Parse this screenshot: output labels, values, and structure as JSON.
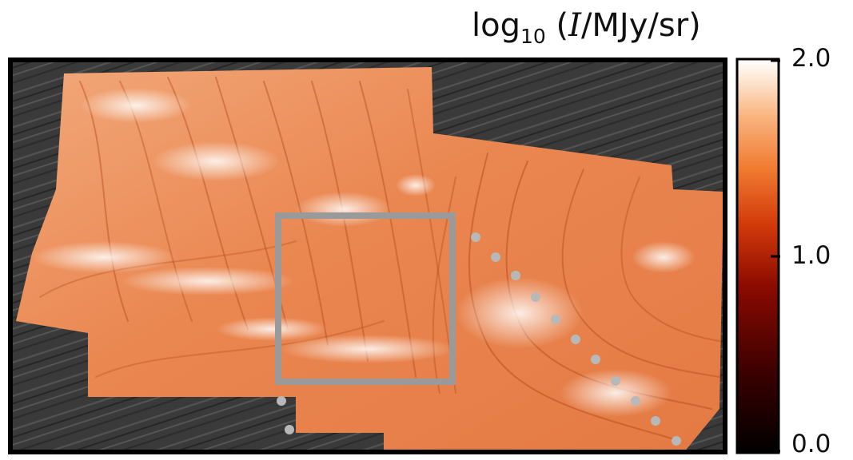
{
  "colorbar": {
    "title_prefix": "log",
    "title_subscript": "10",
    "title_open": "(",
    "title_symbol": "I",
    "title_unit": "/MJy/sr)",
    "ticks": [
      {
        "label": "2.0",
        "value": 2.0
      },
      {
        "label": "1.0",
        "value": 1.0
      },
      {
        "label": "0.0",
        "value": 0.0
      }
    ],
    "range": [
      0.0,
      2.0
    ],
    "colormap": [
      "#000000",
      "#3a0000",
      "#8a0a00",
      "#d23a0a",
      "#f07a30",
      "#f9b27c",
      "#fde8d4",
      "#ffffff"
    ]
  },
  "map": {
    "background_color": "#3a3a3a",
    "region_color": "#e98a57",
    "box_color": "#9a9a9a",
    "marker_color": "#b8b8b8"
  }
}
